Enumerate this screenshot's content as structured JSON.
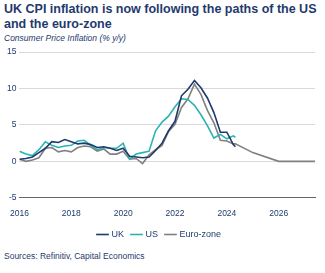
{
  "chart_data": {
    "type": "line",
    "title": "UK CPI inflation is now following the paths of the US and the euro-zone",
    "subtitle": "Consumer Price Inflation (% y/y)",
    "source": "Sources: Refinitiv, Capital Economics",
    "x": [
      2016,
      2016.25,
      2016.5,
      2016.75,
      2017,
      2017.25,
      2017.5,
      2017.75,
      2018,
      2018.25,
      2018.5,
      2018.75,
      2019,
      2019.25,
      2019.5,
      2019.75,
      2020,
      2020.25,
      2020.5,
      2020.75,
      2021,
      2021.25,
      2021.5,
      2021.75,
      2022,
      2022.25,
      2022.5,
      2022.75,
      2023,
      2023.25,
      2023.5,
      2023.75,
      2024,
      2024.25,
      2024.33,
      2025,
      2026,
      2027.4
    ],
    "series": [
      {
        "name": "UK",
        "color": "#1f3a6e",
        "values": [
          0.3,
          0.4,
          0.6,
          1.2,
          1.8,
          2.7,
          2.6,
          3.0,
          2.7,
          2.4,
          2.5,
          2.3,
          1.9,
          2.0,
          1.8,
          1.5,
          1.8,
          0.7,
          0.6,
          0.5,
          0.6,
          1.5,
          2.5,
          4.2,
          5.5,
          9.0,
          9.9,
          11.1,
          10.1,
          8.7,
          6.7,
          4.0,
          4.0,
          2.3,
          2.0,
          null,
          null,
          null
        ]
      },
      {
        "name": "US",
        "color": "#2bb3b1",
        "values": [
          1.4,
          1.0,
          0.8,
          1.6,
          2.7,
          2.2,
          1.9,
          2.1,
          2.2,
          2.8,
          2.9,
          2.2,
          1.6,
          1.9,
          1.8,
          1.8,
          2.5,
          0.3,
          1.0,
          1.2,
          1.4,
          4.2,
          5.4,
          6.2,
          7.5,
          8.6,
          8.5,
          7.7,
          6.4,
          4.9,
          3.2,
          3.7,
          3.1,
          3.5,
          3.3,
          null,
          null,
          null
        ]
      },
      {
        "name": "Euro-zone",
        "color": "#808080",
        "values": [
          0.3,
          0.0,
          0.2,
          0.5,
          1.8,
          1.9,
          1.3,
          1.5,
          1.3,
          1.9,
          2.1,
          2.0,
          1.4,
          1.7,
          1.0,
          1.0,
          1.4,
          0.3,
          0.4,
          -0.3,
          0.9,
          1.6,
          2.2,
          4.1,
          5.1,
          7.4,
          8.6,
          10.6,
          9.2,
          7.0,
          5.3,
          2.9,
          2.8,
          2.4,
          2.4,
          1.2,
          0.0,
          0.0
        ]
      }
    ],
    "xlim": [
      2016,
      2027.4
    ],
    "xticks": [
      2016,
      2018,
      2020,
      2022,
      2024,
      2026
    ],
    "ylim": [
      -5,
      15
    ],
    "yticks": [
      -5,
      0,
      5,
      10,
      15
    ],
    "grid": true,
    "legend": "bottom"
  }
}
